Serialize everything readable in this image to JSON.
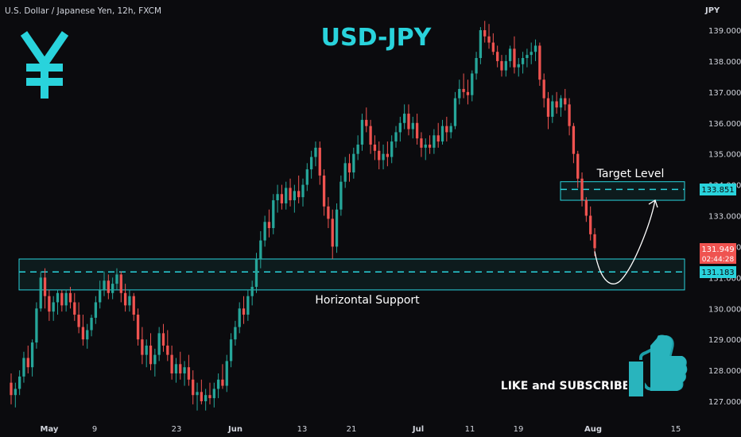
{
  "header": {
    "symbol_info": "U.S. Dollar / Japanese Yen, 12h, FXCM",
    "currency": "JPY"
  },
  "title": "USD-JPY",
  "colors": {
    "background": "#0b0b0e",
    "up": "#26a69a",
    "down": "#ef5350",
    "accent": "#29d3dc",
    "text": "#d1d4dc"
  },
  "icons": {
    "logo": "yen-icon",
    "like": "thumbs-up-icon"
  },
  "annotations": {
    "target_label": "Target Level",
    "support_label": "Horizontal Support",
    "cta": "LIKE and SUBSCRIBE"
  },
  "price_tags": {
    "target": "133.851",
    "support": "131.183",
    "last_price": "131.949",
    "countdown": "02:44:28"
  },
  "chart_data": {
    "type": "candlestick",
    "y_ticks": [
      "139.000",
      "138.000",
      "137.000",
      "136.000",
      "135.000",
      "134.000",
      "133.000",
      "132.000",
      "131.000",
      "130.000",
      "129.000",
      "128.000",
      "127.000"
    ],
    "x_ticks": [
      "May",
      "9",
      "23",
      "Jun",
      "13",
      "21",
      "Jul",
      "11",
      "19",
      "Aug",
      "15"
    ],
    "ylim": [
      126.5,
      139.6
    ],
    "levels": {
      "target": 133.851,
      "support": 131.183
    },
    "zones": {
      "target": [
        133.5,
        134.1
      ],
      "support": [
        130.6,
        131.6
      ]
    },
    "path_forecast": {
      "from_price": 131.95,
      "low_price": 131.1,
      "to_price": 133.5
    },
    "candles_ohlc": [
      [
        127.6,
        127.9,
        126.9,
        127.2
      ],
      [
        127.2,
        127.6,
        126.8,
        127.4
      ],
      [
        127.4,
        128.0,
        127.2,
        127.8
      ],
      [
        127.8,
        128.6,
        127.6,
        128.4
      ],
      [
        128.4,
        128.8,
        127.9,
        128.1
      ],
      [
        128.1,
        129.0,
        127.8,
        128.9
      ],
      [
        128.9,
        130.2,
        128.7,
        130.0
      ],
      [
        130.0,
        131.2,
        129.9,
        131.0
      ],
      [
        131.0,
        131.3,
        130.0,
        130.4
      ],
      [
        130.4,
        130.6,
        129.6,
        129.9
      ],
      [
        129.9,
        130.4,
        129.6,
        130.2
      ],
      [
        130.2,
        130.6,
        129.8,
        130.5
      ],
      [
        130.5,
        130.6,
        129.9,
        130.1
      ],
      [
        130.1,
        130.6,
        129.9,
        130.5
      ],
      [
        130.5,
        130.7,
        130.0,
        130.2
      ],
      [
        130.2,
        130.5,
        129.6,
        129.8
      ],
      [
        129.8,
        130.2,
        129.2,
        129.4
      ],
      [
        129.4,
        129.8,
        128.8,
        129.0
      ],
      [
        129.0,
        129.5,
        128.7,
        129.3
      ],
      [
        129.3,
        129.8,
        129.1,
        129.7
      ],
      [
        129.7,
        130.4,
        129.5,
        130.2
      ],
      [
        130.2,
        130.9,
        130.0,
        130.6
      ],
      [
        130.6,
        131.2,
        130.4,
        130.9
      ],
      [
        130.9,
        131.1,
        130.3,
        130.5
      ],
      [
        130.5,
        131.0,
        130.3,
        130.8
      ],
      [
        130.8,
        131.3,
        130.6,
        131.1
      ],
      [
        131.1,
        131.2,
        130.2,
        130.5
      ],
      [
        130.5,
        130.8,
        129.9,
        130.1
      ],
      [
        130.1,
        130.6,
        129.9,
        130.4
      ],
      [
        130.4,
        130.5,
        129.6,
        129.8
      ],
      [
        129.8,
        130.0,
        128.8,
        129.0
      ],
      [
        129.0,
        129.4,
        128.2,
        128.5
      ],
      [
        128.5,
        129.0,
        128.1,
        128.8
      ],
      [
        128.8,
        129.2,
        128.0,
        128.2
      ],
      [
        128.2,
        128.7,
        127.8,
        128.5
      ],
      [
        128.5,
        129.4,
        128.3,
        129.2
      ],
      [
        129.2,
        129.5,
        128.6,
        128.8
      ],
      [
        128.8,
        129.3,
        128.3,
        128.5
      ],
      [
        128.5,
        128.8,
        127.7,
        127.9
      ],
      [
        127.9,
        128.4,
        127.6,
        128.2
      ],
      [
        128.2,
        128.6,
        127.7,
        127.9
      ],
      [
        127.9,
        128.3,
        127.5,
        128.1
      ],
      [
        128.1,
        128.5,
        127.5,
        127.7
      ],
      [
        127.7,
        128.0,
        126.9,
        127.2
      ],
      [
        127.2,
        127.6,
        126.7,
        127.3
      ],
      [
        127.3,
        127.7,
        126.9,
        127.0
      ],
      [
        127.0,
        127.4,
        126.7,
        127.2
      ],
      [
        127.2,
        127.6,
        126.9,
        127.1
      ],
      [
        127.1,
        127.6,
        126.8,
        127.4
      ],
      [
        127.4,
        127.9,
        127.1,
        127.7
      ],
      [
        127.7,
        128.2,
        127.4,
        127.5
      ],
      [
        127.5,
        128.5,
        127.3,
        128.3
      ],
      [
        128.3,
        129.2,
        128.1,
        129.0
      ],
      [
        129.0,
        129.6,
        128.8,
        129.4
      ],
      [
        129.4,
        130.2,
        129.2,
        130.0
      ],
      [
        130.0,
        130.4,
        129.5,
        129.8
      ],
      [
        129.8,
        130.6,
        129.6,
        130.4
      ],
      [
        130.4,
        130.9,
        130.1,
        130.7
      ],
      [
        130.7,
        131.8,
        130.5,
        131.6
      ],
      [
        131.6,
        132.5,
        131.3,
        132.2
      ],
      [
        132.2,
        133.0,
        132.0,
        132.8
      ],
      [
        132.8,
        133.2,
        132.3,
        132.6
      ],
      [
        132.6,
        133.7,
        132.4,
        133.5
      ],
      [
        133.5,
        134.0,
        133.1,
        133.7
      ],
      [
        133.7,
        134.0,
        133.2,
        133.4
      ],
      [
        133.4,
        134.1,
        133.2,
        133.9
      ],
      [
        133.9,
        134.2,
        133.3,
        133.5
      ],
      [
        133.5,
        134.0,
        133.1,
        133.8
      ],
      [
        133.8,
        134.3,
        133.4,
        133.6
      ],
      [
        133.6,
        134.2,
        133.3,
        134.0
      ],
      [
        134.0,
        134.7,
        133.8,
        134.5
      ],
      [
        134.5,
        135.1,
        134.2,
        134.9
      ],
      [
        134.9,
        135.4,
        134.6,
        135.2
      ],
      [
        135.2,
        135.4,
        134.0,
        134.3
      ],
      [
        134.3,
        134.5,
        133.0,
        133.3
      ],
      [
        133.3,
        133.6,
        132.6,
        132.9
      ],
      [
        132.9,
        133.2,
        131.6,
        132.0
      ],
      [
        132.0,
        133.4,
        131.8,
        133.2
      ],
      [
        133.2,
        134.3,
        133.0,
        134.1
      ],
      [
        134.1,
        134.9,
        133.9,
        134.7
      ],
      [
        134.7,
        135.0,
        134.1,
        134.4
      ],
      [
        134.4,
        135.2,
        134.2,
        135.0
      ],
      [
        135.0,
        135.6,
        134.8,
        135.3
      ],
      [
        135.3,
        136.3,
        135.1,
        136.1
      ],
      [
        136.1,
        136.5,
        135.7,
        135.9
      ],
      [
        135.9,
        136.1,
        135.0,
        135.3
      ],
      [
        135.3,
        135.6,
        134.8,
        135.1
      ],
      [
        135.1,
        135.4,
        134.5,
        134.8
      ],
      [
        134.8,
        135.3,
        134.5,
        135.0
      ],
      [
        135.0,
        135.4,
        134.6,
        134.9
      ],
      [
        134.9,
        135.6,
        134.7,
        135.4
      ],
      [
        135.4,
        135.9,
        135.2,
        135.7
      ],
      [
        135.7,
        136.2,
        135.4,
        136.0
      ],
      [
        136.0,
        136.6,
        135.8,
        136.3
      ],
      [
        136.3,
        136.6,
        135.6,
        135.8
      ],
      [
        135.8,
        136.2,
        135.5,
        136.0
      ],
      [
        136.0,
        136.3,
        135.3,
        135.5
      ],
      [
        135.5,
        135.7,
        134.9,
        135.2
      ],
      [
        135.2,
        135.5,
        134.8,
        135.3
      ],
      [
        135.3,
        135.6,
        135.0,
        135.2
      ],
      [
        135.2,
        135.8,
        135.0,
        135.6
      ],
      [
        135.6,
        136.0,
        135.2,
        135.4
      ],
      [
        135.4,
        136.1,
        135.3,
        135.9
      ],
      [
        135.9,
        136.2,
        135.4,
        135.7
      ],
      [
        135.7,
        136.0,
        135.5,
        135.9
      ],
      [
        135.9,
        137.0,
        135.8,
        136.8
      ],
      [
        136.8,
        137.4,
        136.6,
        137.1
      ],
      [
        137.1,
        137.6,
        136.8,
        137.0
      ],
      [
        137.0,
        137.4,
        136.6,
        136.9
      ],
      [
        136.9,
        137.7,
        136.7,
        137.6
      ],
      [
        137.6,
        138.3,
        137.4,
        138.1
      ],
      [
        138.1,
        139.1,
        137.9,
        139.0
      ],
      [
        139.0,
        139.3,
        138.6,
        138.8
      ],
      [
        138.8,
        139.2,
        138.4,
        138.6
      ],
      [
        138.6,
        138.9,
        138.2,
        138.3
      ],
      [
        138.3,
        138.5,
        137.8,
        138.0
      ],
      [
        138.0,
        138.2,
        137.5,
        137.7
      ],
      [
        137.7,
        138.2,
        137.5,
        138.0
      ],
      [
        138.0,
        138.5,
        137.8,
        138.4
      ],
      [
        138.4,
        138.8,
        137.6,
        137.8
      ],
      [
        137.8,
        138.1,
        137.5,
        137.9
      ],
      [
        137.9,
        138.3,
        137.6,
        138.1
      ],
      [
        138.1,
        138.4,
        137.8,
        138.2
      ],
      [
        138.2,
        138.6,
        137.9,
        138.3
      ],
      [
        138.3,
        138.7,
        138.0,
        138.5
      ],
      [
        138.5,
        138.6,
        137.2,
        137.4
      ],
      [
        137.4,
        137.6,
        136.5,
        136.8
      ],
      [
        136.8,
        137.0,
        135.8,
        136.2
      ],
      [
        136.2,
        136.9,
        136.0,
        136.7
      ],
      [
        136.7,
        137.0,
        136.3,
        136.5
      ],
      [
        136.5,
        136.9,
        136.2,
        136.8
      ],
      [
        136.8,
        137.1,
        136.4,
        136.6
      ],
      [
        136.6,
        136.8,
        135.6,
        135.9
      ],
      [
        135.9,
        136.0,
        134.7,
        135.0
      ],
      [
        135.0,
        135.1,
        133.9,
        134.2
      ],
      [
        134.2,
        134.4,
        133.3,
        133.5
      ],
      [
        133.5,
        133.6,
        132.8,
        133.0
      ],
      [
        133.0,
        133.3,
        132.2,
        132.4
      ],
      [
        132.4,
        132.6,
        131.7,
        131.95
      ]
    ]
  }
}
